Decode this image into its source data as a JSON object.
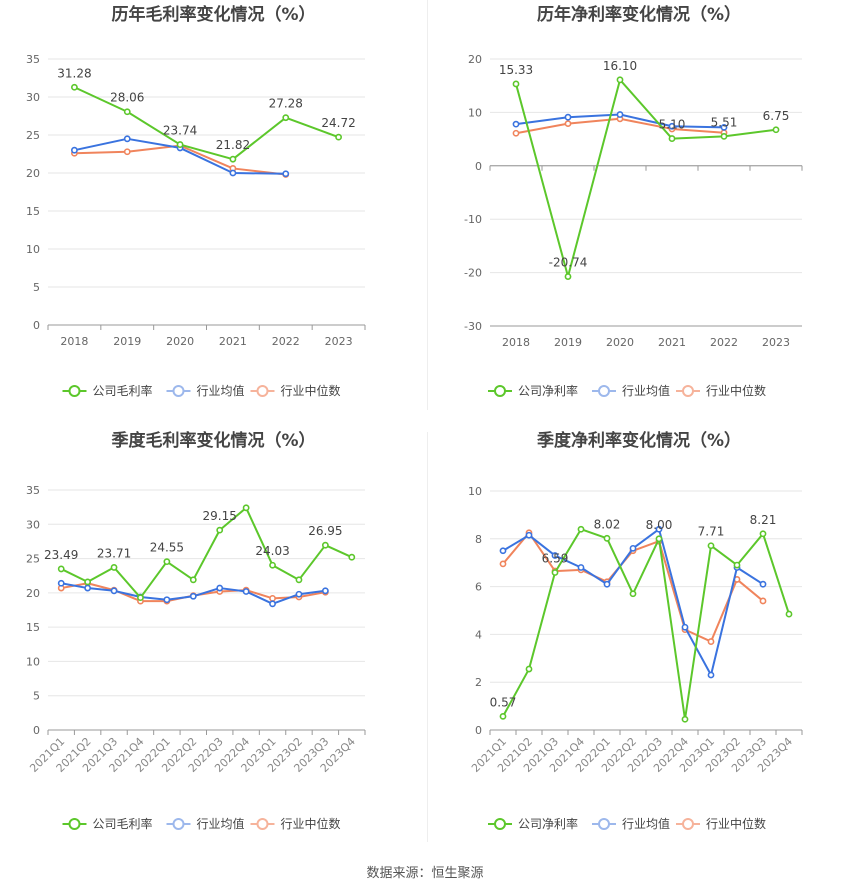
{
  "source": "数据来源：恒生聚源",
  "legend_labels": {
    "industry_avg": "行业均值",
    "industry_median": "行业中位数"
  },
  "chart_data": [
    {
      "type": "line",
      "title": "历年毛利率变化情况（%）",
      "categories": [
        "2018",
        "2019",
        "2020",
        "2021",
        "2022",
        "2023"
      ],
      "ylim": [
        0,
        35
      ],
      "yticks": [
        0,
        5,
        10,
        15,
        20,
        25,
        30,
        35
      ],
      "rotate_x": false,
      "series": [
        {
          "name": "公司毛利率",
          "color": "#5cc72b",
          "values": [
            31.28,
            28.06,
            23.74,
            21.82,
            27.28,
            24.72
          ],
          "labels": [
            "31.28",
            "28.06",
            "23.74",
            "21.82",
            "27.28",
            "24.72"
          ]
        },
        {
          "name": "行业均值",
          "color": "#3a73df",
          "values": [
            23.0,
            24.5,
            23.3,
            20.0,
            19.9,
            null
          ]
        },
        {
          "name": "行业中位数",
          "color": "#f0845c",
          "values": [
            22.6,
            22.8,
            23.6,
            20.6,
            19.8,
            null
          ]
        }
      ]
    },
    {
      "type": "line",
      "title": "历年净利率变化情况（%）",
      "categories": [
        "2018",
        "2019",
        "2020",
        "2021",
        "2022",
        "2023"
      ],
      "ylim": [
        -30,
        20
      ],
      "yticks": [
        -30,
        -20,
        -10,
        0,
        10,
        20
      ],
      "rotate_x": false,
      "series": [
        {
          "name": "公司净利率",
          "color": "#5cc72b",
          "values": [
            15.33,
            -20.74,
            16.1,
            5.1,
            5.51,
            6.75
          ],
          "labels": [
            "15.33",
            "-20.74",
            "16.10",
            "5.10",
            "5.51",
            "6.75"
          ]
        },
        {
          "name": "行业均值",
          "color": "#3a73df",
          "values": [
            7.8,
            9.1,
            9.6,
            7.4,
            7.2,
            null
          ]
        },
        {
          "name": "行业中位数",
          "color": "#f0845c",
          "values": [
            6.1,
            7.9,
            8.8,
            6.9,
            6.2,
            null
          ]
        }
      ]
    },
    {
      "type": "line",
      "title": "季度毛利率变化情况（%）",
      "categories": [
        "2021Q1",
        "2021Q2",
        "2021Q3",
        "2021Q4",
        "2022Q1",
        "2022Q2",
        "2022Q3",
        "2022Q4",
        "2023Q1",
        "2023Q2",
        "2023Q3",
        "2023Q4"
      ],
      "ylim": [
        0,
        35
      ],
      "yticks": [
        0,
        5,
        10,
        15,
        20,
        25,
        30,
        35
      ],
      "rotate_x": true,
      "series": [
        {
          "name": "公司毛利率",
          "color": "#5cc72b",
          "values": [
            23.49,
            21.6,
            23.71,
            19.3,
            24.55,
            21.9,
            29.15,
            32.4,
            24.03,
            21.9,
            26.95,
            25.2
          ],
          "labels": [
            "23.49",
            "",
            "23.71",
            "",
            "24.55",
            "",
            "29.15",
            "",
            "24.03",
            "",
            "26.95",
            ""
          ]
        },
        {
          "name": "行业均值",
          "color": "#3a73df",
          "values": [
            21.4,
            20.7,
            20.3,
            19.4,
            19.0,
            19.5,
            20.7,
            20.2,
            18.4,
            19.8,
            20.3,
            null
          ]
        },
        {
          "name": "行业中位数",
          "color": "#f0845c",
          "values": [
            20.7,
            21.4,
            20.4,
            18.8,
            18.8,
            19.6,
            20.2,
            20.4,
            19.2,
            19.4,
            20.1,
            null
          ]
        }
      ]
    },
    {
      "type": "line",
      "title": "季度净利率变化情况（%）",
      "categories": [
        "2021Q1",
        "2021Q2",
        "2021Q3",
        "2021Q4",
        "2022Q1",
        "2022Q2",
        "2022Q3",
        "2022Q4",
        "2023Q1",
        "2023Q2",
        "2023Q3",
        "2023Q4"
      ],
      "ylim": [
        0,
        10
      ],
      "yticks": [
        0,
        2,
        4,
        6,
        8,
        10
      ],
      "rotate_x": true,
      "series": [
        {
          "name": "公司净利率",
          "color": "#5cc72b",
          "values": [
            0.57,
            2.55,
            6.59,
            8.4,
            8.02,
            5.7,
            8.0,
            0.45,
            7.71,
            6.9,
            8.21,
            4.85
          ],
          "labels": [
            "0.57",
            "",
            "6.59",
            "",
            "8.02",
            "",
            "8.00",
            "",
            "7.71",
            "",
            "8.21",
            ""
          ]
        },
        {
          "name": "行业均值",
          "color": "#3a73df",
          "values": [
            7.5,
            8.15,
            7.3,
            6.8,
            6.1,
            7.6,
            8.4,
            4.3,
            2.3,
            6.8,
            6.1,
            null
          ]
        },
        {
          "name": "行业中位数",
          "color": "#f0845c",
          "values": [
            6.95,
            8.25,
            6.65,
            6.7,
            6.2,
            7.5,
            7.9,
            4.2,
            3.7,
            6.3,
            5.4,
            null
          ]
        }
      ]
    }
  ]
}
